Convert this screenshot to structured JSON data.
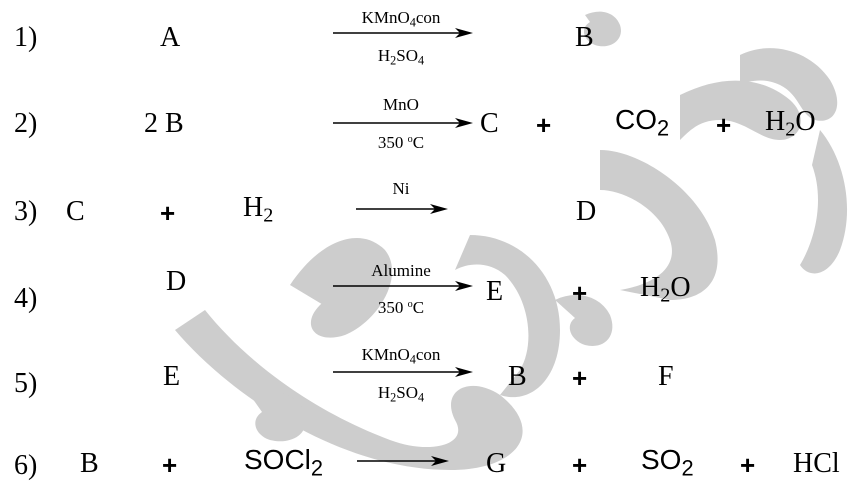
{
  "watermark": {
    "color": "#c8c8c8",
    "icon": "arabic-calligraphy-watermark"
  },
  "reactions": [
    {
      "number": "1)",
      "reactant": "A",
      "condition_top": {
        "main": "KMnO",
        "sub": "4",
        "tail": "con"
      },
      "condition_bottom": {
        "main": "H",
        "sub1": "2",
        "mid": "SO",
        "sub2": "4"
      },
      "product": "B"
    },
    {
      "number": "2)",
      "reactant": "2 B",
      "condition_top": "MnO",
      "condition_bottom": {
        "main": "350 ",
        "sup": "o",
        "tail": "C"
      },
      "product1": "C",
      "plus1": "+",
      "product2": {
        "main": "CO",
        "sub": "2"
      },
      "plus2": "+",
      "product3": {
        "main": "H",
        "sub": "2",
        "tail": "O"
      }
    },
    {
      "number": "3)",
      "reactant1": "C",
      "plus": "+",
      "reactant2": {
        "main": "H",
        "sub": "2"
      },
      "condition_top": "Ni",
      "product": "D"
    },
    {
      "number": "4)",
      "reactant": "D",
      "condition_top": "Alumine",
      "condition_bottom": {
        "main": "350 ",
        "sup": "o",
        "tail": "C"
      },
      "product1": "E",
      "plus": "+",
      "product2": {
        "main": "H",
        "sub": "2",
        "tail": "O"
      }
    },
    {
      "number": "5)",
      "reactant": "E",
      "condition_top": {
        "main": "KMnO",
        "sub": "4",
        "tail": "con"
      },
      "condition_bottom": {
        "main": "H",
        "sub1": "2",
        "mid": "SO",
        "sub2": "4"
      },
      "product1": "B",
      "plus": "+",
      "product2": "F"
    },
    {
      "number": "6)",
      "reactant1": "B",
      "plus1": "+",
      "reactant2": {
        "main": "SOCl",
        "sub": "2"
      },
      "product1": "G",
      "plus2": "+",
      "product2": {
        "main": "SO",
        "sub": "2"
      },
      "plus3": "+",
      "product3": "HCl"
    }
  ]
}
